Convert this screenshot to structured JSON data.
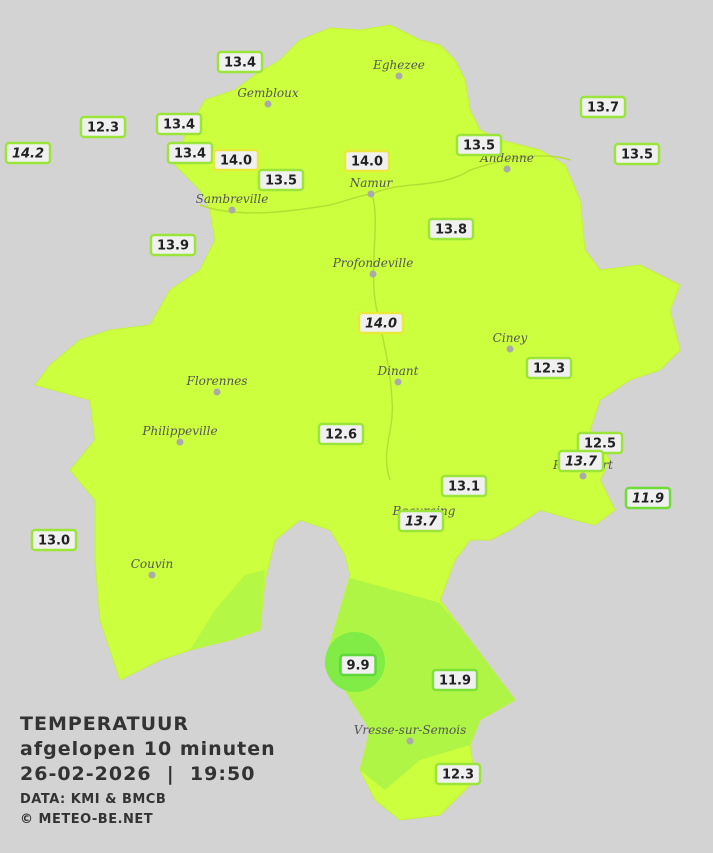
{
  "title": {
    "lines": [
      "TEMPERATUUR",
      "afgelopen 10 minuten",
      "26-02-2026  |  19:50"
    ],
    "credits": [
      "DATA: KMI & BMCB",
      "© METEO-BE.NET"
    ]
  },
  "towns": [
    "Eghezee",
    "Gembloux",
    "Andenne",
    "Namur",
    "Sambreville",
    "Profondeville",
    "Ciney",
    "Dinant",
    "Florennes",
    "Philippeville",
    "Rochefort",
    "Beauraing",
    "Couvin",
    "Vresse-sur-Semois"
  ],
  "stations": [
    {
      "label": "13.4",
      "italic": false,
      "color": "#9be53a"
    },
    {
      "label": "12.3",
      "italic": false,
      "color": "#9be53a"
    },
    {
      "label": "13.4",
      "italic": false,
      "color": "#9be53a"
    },
    {
      "label": "14.2",
      "italic": true,
      "color": "#9be53a"
    },
    {
      "label": "13.4",
      "italic": false,
      "color": "#9be53a"
    },
    {
      "label": "14.0",
      "italic": false,
      "color": "#e8ea3a"
    },
    {
      "label": "13.5",
      "italic": false,
      "color": "#9be53a"
    },
    {
      "label": "14.0",
      "italic": false,
      "color": "#e8ea3a"
    },
    {
      "label": "13.5",
      "italic": false,
      "color": "#9be53a"
    },
    {
      "label": "13.7",
      "italic": false,
      "color": "#9be53a"
    },
    {
      "label": "13.5",
      "italic": false,
      "color": "#9be53a"
    },
    {
      "label": "13.9",
      "italic": false,
      "color": "#9be53a"
    },
    {
      "label": "13.8",
      "italic": false,
      "color": "#9be53a"
    },
    {
      "label": "14.0",
      "italic": true,
      "color": "#e8ea3a"
    },
    {
      "label": "12.3",
      "italic": false,
      "color": "#9be53a"
    },
    {
      "label": "12.6",
      "italic": false,
      "color": "#9be53a"
    },
    {
      "label": "12.5",
      "italic": false,
      "color": "#9be53a"
    },
    {
      "label": "13.7",
      "italic": true,
      "color": "#9be53a"
    },
    {
      "label": "13.1",
      "italic": false,
      "color": "#9be53a"
    },
    {
      "label": "11.9",
      "italic": true,
      "color": "#6fdc3a"
    },
    {
      "label": "13.7",
      "italic": true,
      "color": "#9be53a"
    },
    {
      "label": "13.0",
      "italic": false,
      "color": "#9be53a"
    },
    {
      "label": "9.9",
      "italic": false,
      "color": "#5fd63a"
    },
    {
      "label": "11.9",
      "italic": false,
      "color": "#7fe03a"
    },
    {
      "label": "12.3",
      "italic": false,
      "color": "#9be53a"
    }
  ]
}
